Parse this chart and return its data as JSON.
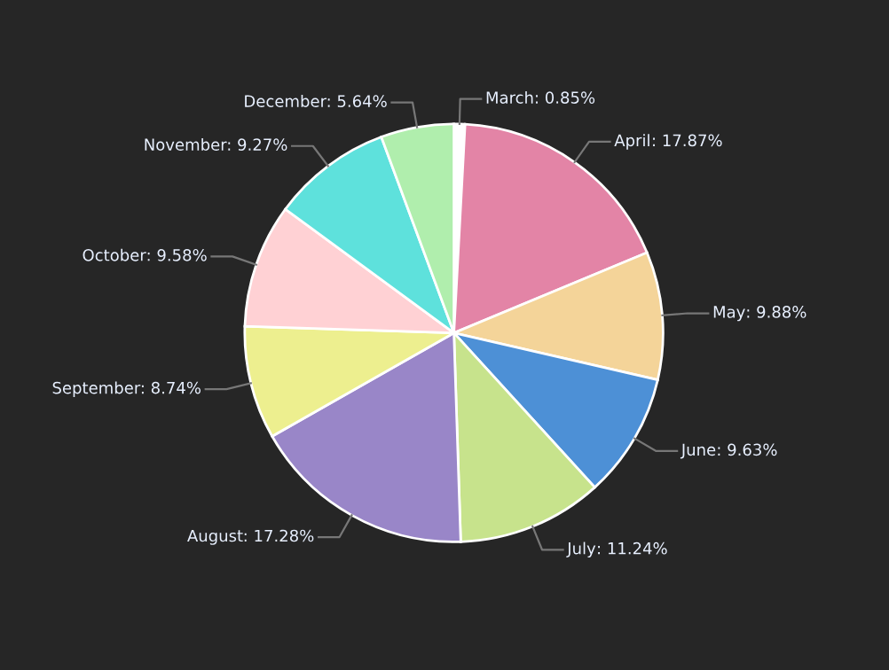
{
  "chart_data": {
    "type": "pie",
    "categories": [
      "March",
      "April",
      "May",
      "June",
      "July",
      "August",
      "September",
      "October",
      "November",
      "December"
    ],
    "values": [
      0.85,
      17.87,
      9.88,
      9.63,
      11.24,
      17.28,
      8.74,
      9.58,
      9.27,
      5.64
    ],
    "value_labels": [
      ": 0.85%",
      ": 17.87%",
      ": 9.88%",
      ": 9.63%",
      ": 11.24%",
      ": 17.28%",
      ": 8.74%",
      ": 9.58%",
      ": 9.27%",
      ": 5.64%"
    ],
    "colors": [
      "#ffffff",
      "#e384a6",
      "#f4d499",
      "#4d90d6",
      "#c7e38c",
      "#9986c8",
      "#edef8f",
      "#ffd1d4",
      "#5ee1dc",
      "#b0eead"
    ],
    "legend": false
  }
}
